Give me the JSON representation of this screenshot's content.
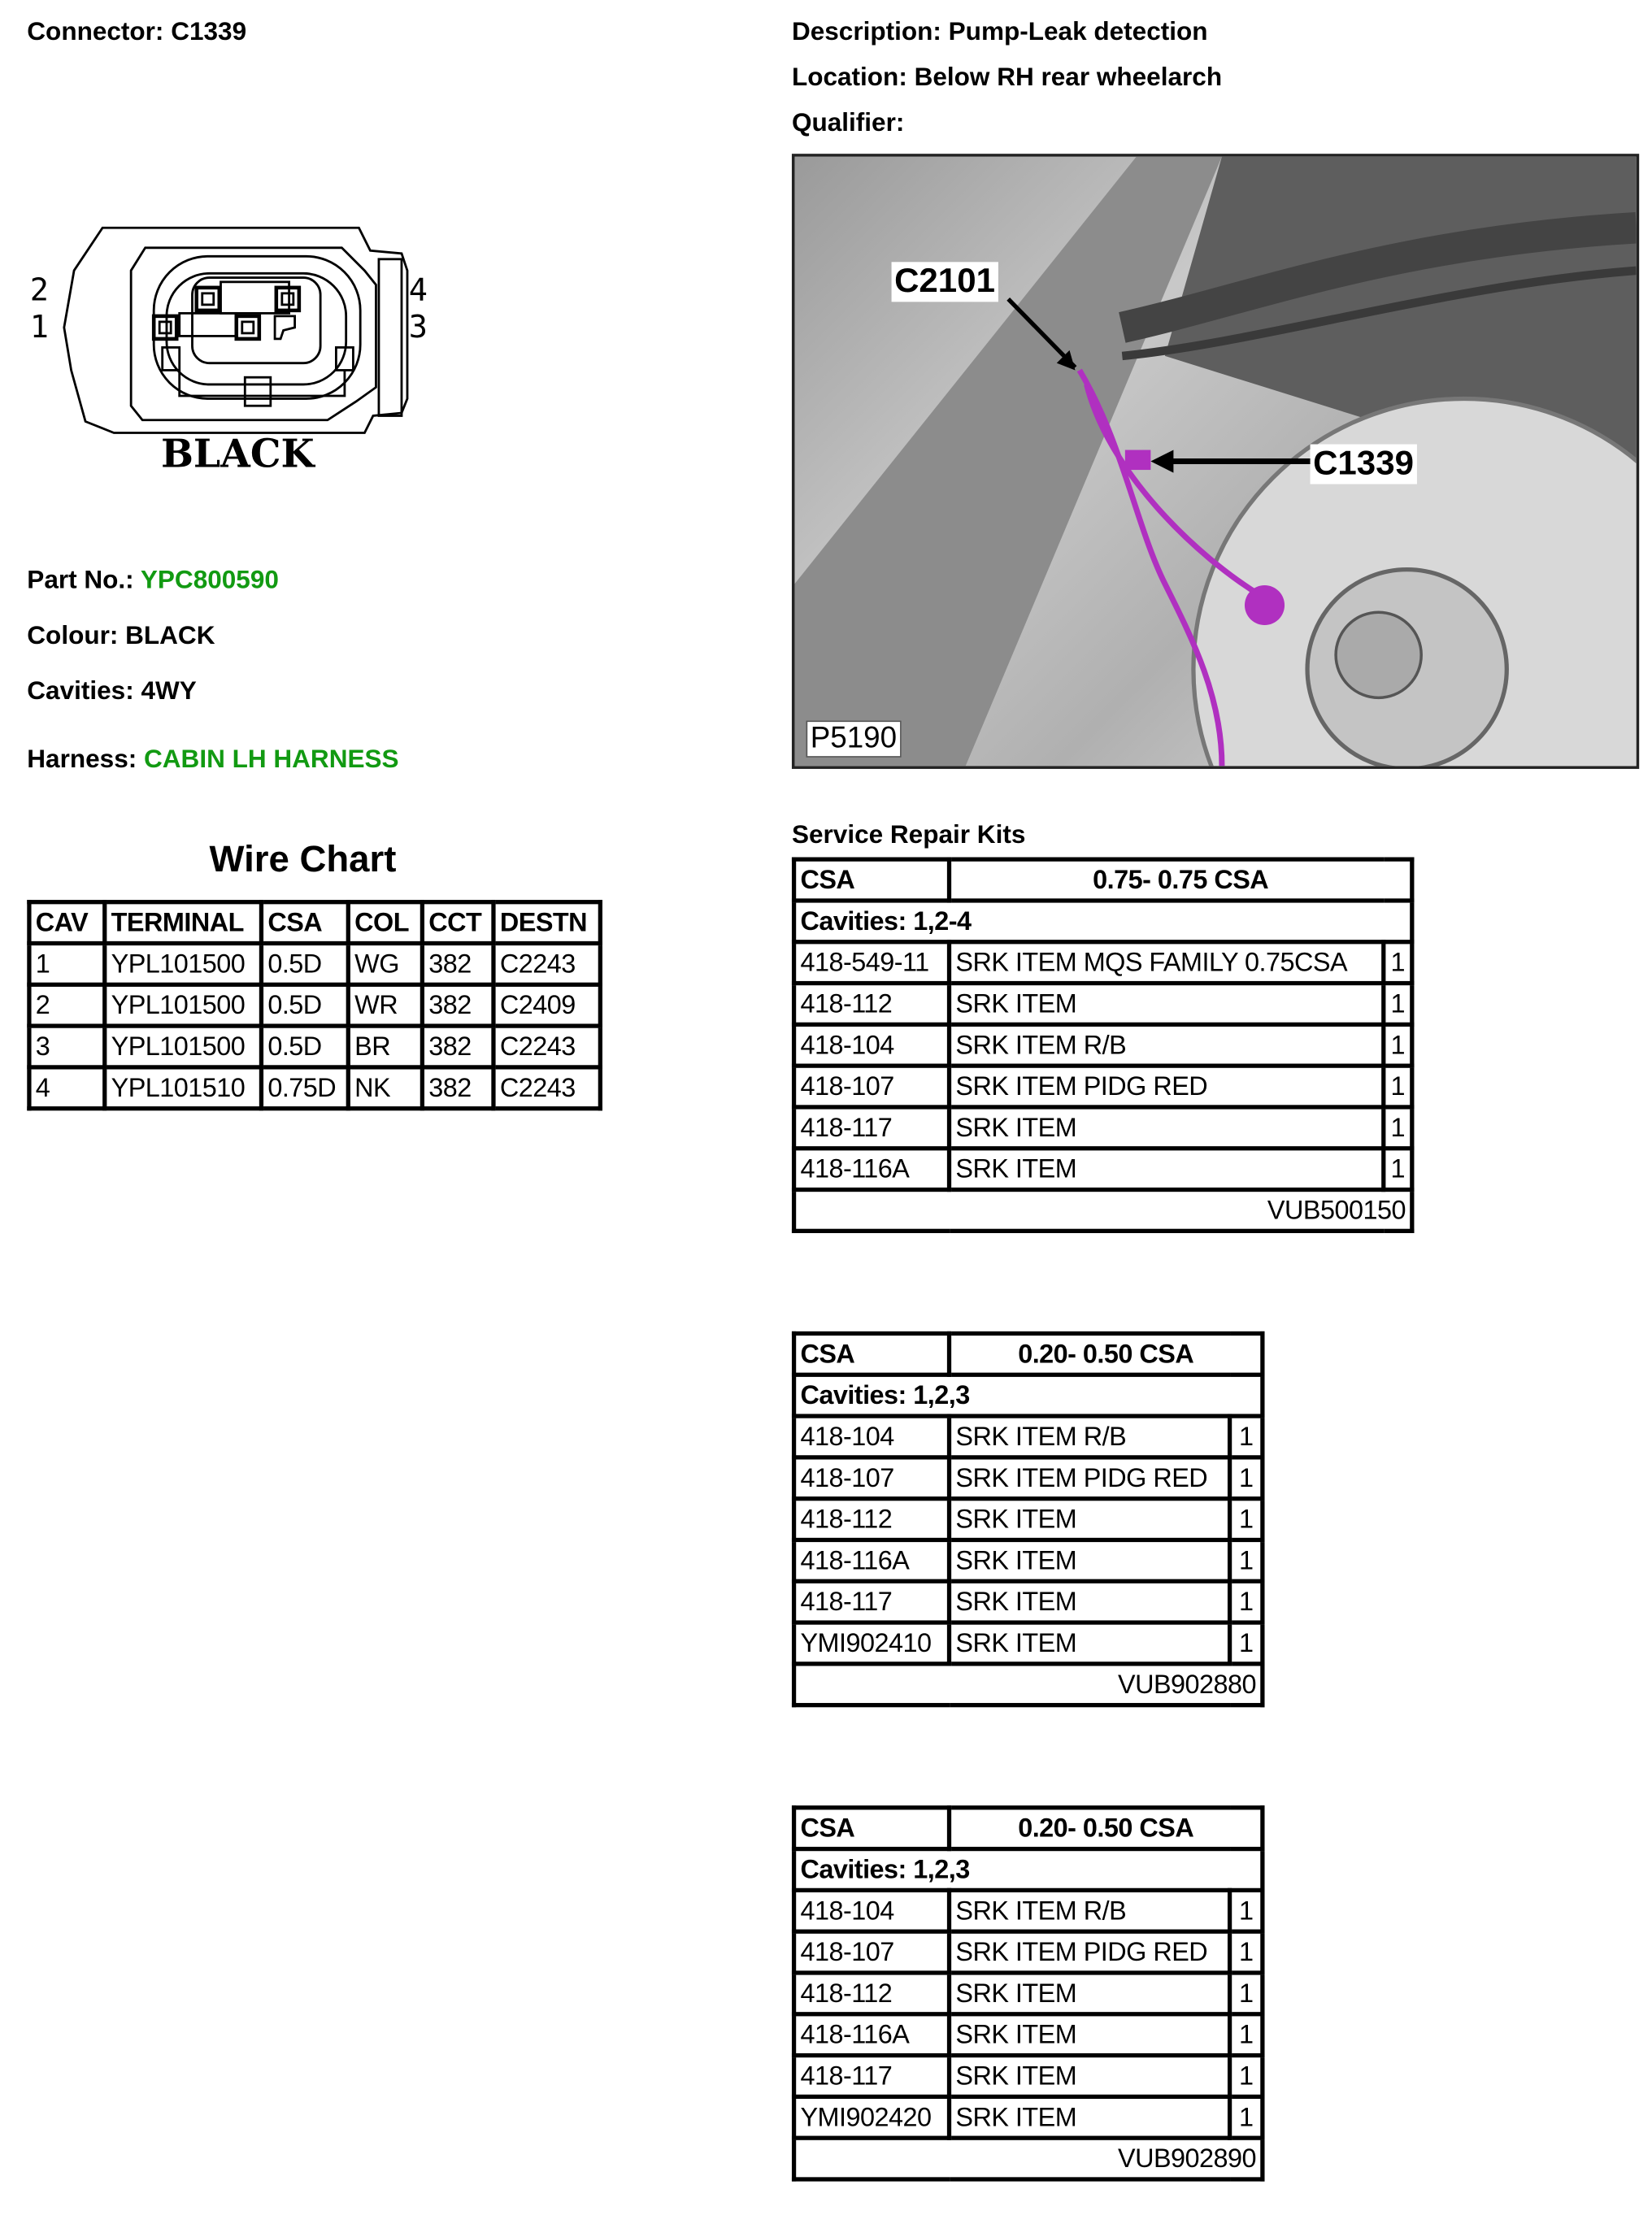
{
  "connector": {
    "label": "Connector: C1339",
    "pins_left": [
      "2",
      "1"
    ],
    "pins_right": [
      "4",
      "3"
    ],
    "housing_colour_text": "BLACK"
  },
  "info": {
    "part_no_label": "Part No.: ",
    "part_no": "YPC800590",
    "colour": "Colour: BLACK",
    "cavities": "Cavities: 4WY",
    "harness_label": "Harness: ",
    "harness": "CABIN LH HARNESS",
    "link_color": "#129a12"
  },
  "description": {
    "description": "Description: Pump-Leak detection",
    "location": "Location: Below RH rear wheelarch",
    "qualifier": "Qualifier:"
  },
  "photo": {
    "callout_1": "C2101",
    "callout_2": "C1339",
    "ref": "P5190",
    "highlight_color": "#b030c0"
  },
  "wire_chart": {
    "title": "Wire Chart",
    "headers": [
      "CAV",
      "TERMINAL",
      "CSA",
      "COL",
      "CCT",
      "DESTN"
    ],
    "rows": [
      [
        "1",
        "YPL101500",
        "0.5D",
        "WG",
        "382",
        "C2243"
      ],
      [
        "2",
        "YPL101500",
        "0.5D",
        "WR",
        "382",
        "C2409"
      ],
      [
        "3",
        "YPL101500",
        "0.5D",
        "BR",
        "382",
        "C2243"
      ],
      [
        "4",
        "YPL101510",
        "0.75D",
        "NK",
        "382",
        "C2243"
      ]
    ]
  },
  "service_kits": {
    "title": "Service Repair Kits",
    "kits": [
      {
        "csa_label": "CSA",
        "csa_range": "0.75- 0.75 CSA",
        "cavities": "Cavities: 1,2-4",
        "items": [
          [
            "418-549-11",
            "SRK ITEM MQS FAMILY 0.75CSA",
            "1"
          ],
          [
            "418-112",
            "SRK ITEM",
            "1"
          ],
          [
            "418-104",
            "SRK ITEM R/B",
            "1"
          ],
          [
            "418-107",
            "SRK ITEM PIDG RED",
            "1"
          ],
          [
            "418-117",
            "SRK ITEM",
            "1"
          ],
          [
            "418-116A",
            "SRK ITEM",
            "1"
          ]
        ],
        "kit_no": "VUB500150"
      },
      {
        "csa_label": "CSA",
        "csa_range": "0.20- 0.50 CSA",
        "cavities": "Cavities: 1,2,3",
        "items": [
          [
            "418-104",
            "SRK ITEM R/B",
            "1"
          ],
          [
            "418-107",
            "SRK ITEM PIDG RED",
            "1"
          ],
          [
            "418-112",
            "SRK ITEM",
            "1"
          ],
          [
            "418-116A",
            "SRK ITEM",
            "1"
          ],
          [
            "418-117",
            "SRK ITEM",
            "1"
          ],
          [
            "YMI902410",
            "SRK ITEM",
            "1"
          ]
        ],
        "kit_no": "VUB902880"
      },
      {
        "csa_label": "CSA",
        "csa_range": "0.20- 0.50 CSA",
        "cavities": "Cavities: 1,2,3",
        "items": [
          [
            "418-104",
            "SRK ITEM R/B",
            "1"
          ],
          [
            "418-107",
            "SRK ITEM PIDG RED",
            "1"
          ],
          [
            "418-112",
            "SRK ITEM",
            "1"
          ],
          [
            "418-116A",
            "SRK ITEM",
            "1"
          ],
          [
            "418-117",
            "SRK ITEM",
            "1"
          ],
          [
            "YMI902420",
            "SRK ITEM",
            "1"
          ]
        ],
        "kit_no": "VUB902890"
      }
    ]
  }
}
